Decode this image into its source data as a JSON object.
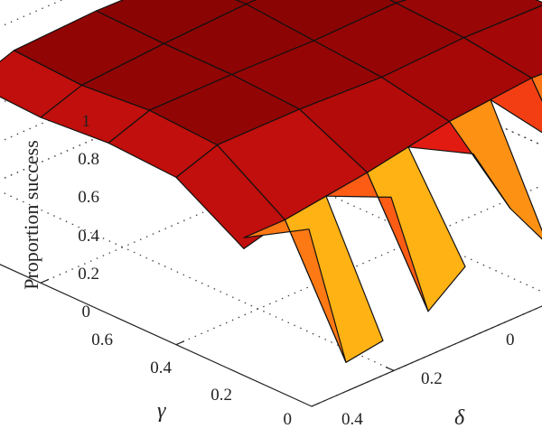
{
  "chart_data": {
    "type": "surface",
    "title": "",
    "zlabel": "Proportion success",
    "xlabel": "δ",
    "ylabel": "γ",
    "x_ticks": [
      "0",
      "0.2",
      "0.4"
    ],
    "y_ticks": [
      "0",
      "0.2",
      "0.4",
      "0.6"
    ],
    "z_ticks": [
      "0",
      "0.2",
      "0.4",
      "0.6",
      "0.8",
      "1"
    ],
    "x_range": [
      0,
      0.5
    ],
    "y_range": [
      0,
      0.6
    ],
    "z_range": [
      0,
      1
    ],
    "grid": true,
    "colormap": "hot",
    "delta": [
      0.05,
      0.15,
      0.25,
      0.35,
      0.45
    ],
    "gamma": [
      0.1,
      0.2,
      0.3,
      0.4,
      0.5
    ],
    "z": [
      [
        0.88,
        0.94,
        0.92,
        0.98,
        0.96
      ],
      [
        0.9,
        0.95,
        0.97,
        0.99,
        0.98
      ],
      [
        0.86,
        0.93,
        0.96,
        0.99,
        0.97
      ],
      [
        0.78,
        0.95,
        0.97,
        0.97,
        0.98
      ],
      [
        0.72,
        0.95,
        0.97,
        0.94,
        0.96
      ]
    ],
    "edge_z": [
      [
        0.92,
        0.75,
        0.45
      ],
      [
        0.55,
        0.35,
        0.8
      ],
      [
        0.28,
        0.55,
        0.92
      ],
      [
        0.35,
        0.2,
        0.88
      ],
      [
        0.15,
        0.12,
        0.9
      ]
    ]
  }
}
